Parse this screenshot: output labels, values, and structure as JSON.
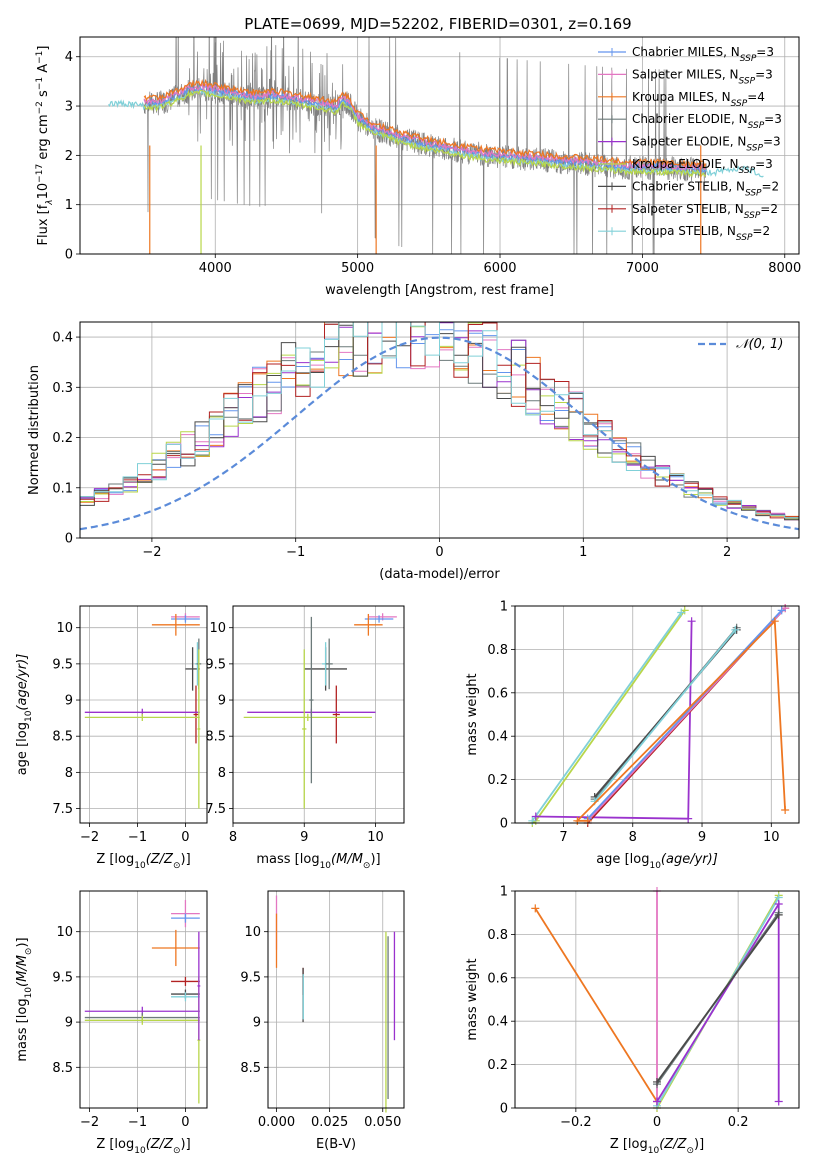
{
  "figure_title": "PLATE=0699, MJD=52202, FIBERID=0301, z=0.169",
  "colors": {
    "Chabrier MILES": "#6495ed",
    "Salpeter MILES": "#e377c2",
    "Kroupa MILES": "#ee7722",
    "Chabrier ELODIE": "#6c7a7a",
    "Salpeter ELODIE": "#9a32cd",
    "Kroupa ELODIE": "#b8d64a",
    "Chabrier STELIB": "#4a4a4a",
    "Salpeter STELIB": "#b22222",
    "Kroupa STELIB": "#80d0d8",
    "data": "#808080",
    "normal": "#5b8bd9"
  },
  "chart_data": [
    {
      "id": "spectrum",
      "type": "line",
      "xlabel": "wavelength [Angstrom, rest frame]",
      "ylabel_parts": [
        "Flux [f",
        "λ",
        "10",
        "−17",
        " erg cm",
        "−2",
        " s",
        "−1",
        " A",
        "−1",
        "]"
      ],
      "xlim": [
        3050,
        8100
      ],
      "ylim": [
        0,
        4.4
      ],
      "xticks": [
        4000,
        5000,
        6000,
        7000,
        8000
      ],
      "yticks": [
        0,
        1,
        2,
        3,
        4
      ],
      "legend": [
        {
          "name": "Chabrier MILES",
          "nssp": "3"
        },
        {
          "name": "Salpeter MILES",
          "nssp": "3"
        },
        {
          "name": "Kroupa MILES",
          "nssp": "4"
        },
        {
          "name": "Chabrier ELODIE",
          "nssp": "3"
        },
        {
          "name": "Salpeter ELODIE",
          "nssp": "3"
        },
        {
          "name": "Kroupa ELODIE",
          "nssp": "3"
        },
        {
          "name": "Chabrier STELIB",
          "nssp": "2"
        },
        {
          "name": "Salpeter STELIB",
          "nssp": "2"
        },
        {
          "name": "Kroupa STELIB",
          "nssp": "2"
        }
      ],
      "legend_position": "top-right",
      "continuum": {
        "x": [
          3250,
          3400,
          3500,
          3600,
          3700,
          3800,
          3900,
          4000,
          4100,
          4200,
          4300,
          4400,
          4500,
          4600,
          4700,
          4800,
          4850,
          4900,
          4950,
          5000,
          5100,
          5200,
          5300,
          5500,
          5700,
          5900,
          6100,
          6300,
          6500,
          6700,
          6900,
          7100,
          7300,
          7500,
          7700,
          7850
        ],
        "y": [
          3.1,
          3.1,
          3.05,
          3.05,
          3.15,
          3.3,
          3.35,
          3.3,
          3.25,
          3.2,
          3.15,
          3.2,
          3.15,
          3.1,
          3.05,
          3.0,
          2.95,
          3.15,
          3.0,
          2.75,
          2.55,
          2.45,
          2.35,
          2.2,
          2.1,
          2.0,
          1.95,
          1.9,
          1.85,
          1.8,
          1.75,
          1.75,
          1.72,
          1.7,
          1.8,
          1.65
        ]
      },
      "model_offsets": {
        "Kroupa MILES": 0.12,
        "Salpeter MILES": 0.05,
        "Chabrier MILES": 0.02,
        "Kroupa ELODIE": -0.08,
        "Kroupa STELIB": -0.05
      },
      "data_range": [
        3500,
        7450
      ]
    },
    {
      "id": "residuals",
      "type": "histogram",
      "xlabel": "(data-model)/error",
      "ylabel": "Normed distribution",
      "xlim": [
        -2.5,
        2.5
      ],
      "ylim": [
        0,
        0.43
      ],
      "xticks": [
        -2,
        -1,
        0,
        1,
        2
      ],
      "yticks": [
        0,
        0.1,
        0.2,
        0.3,
        0.4
      ],
      "legend": [
        "𝒩(0, 1)"
      ],
      "legend_position": "top-right",
      "normal_mean": 0,
      "normal_sigma": 1
    },
    {
      "id": "age-vs-Z",
      "type": "scatter",
      "xlabel_parts": [
        "Z [log",
        "10",
        "(Z/Z",
        "⊙",
        ")]"
      ],
      "ylabel_parts": [
        "age  [log",
        "10",
        "(age/yr)]"
      ],
      "xlim": [
        -2.2,
        0.45
      ],
      "ylim": [
        7.3,
        10.3
      ],
      "xticks": [
        -2,
        -1,
        0
      ],
      "yticks": [
        7.5,
        8.0,
        8.5,
        9.0,
        9.5,
        10.0
      ],
      "points": [
        {
          "model": "Salpeter MILES",
          "x": 0.0,
          "y": 10.15,
          "xerr": 0.3,
          "yerr": 0.05
        },
        {
          "model": "Chabrier MILES",
          "x": 0.0,
          "y": 10.12,
          "xerr": 0.3,
          "yerr": 0.05
        },
        {
          "model": "Kroupa MILES",
          "x": -0.2,
          "y": 10.04,
          "xerr": 0.5,
          "yerr": 0.15
        },
        {
          "model": "Chabrier STELIB",
          "x": 0.15,
          "y": 9.43,
          "xerr": 0.15,
          "yerr": 0.3
        },
        {
          "model": "Kroupa STELIB",
          "x": 0.25,
          "y": 9.5,
          "xerr": 0.05,
          "yerr": 0.3
        },
        {
          "model": "Chabrier ELODIE",
          "x": 0.28,
          "y": 9.5,
          "xerr": 0.05,
          "yerr": 0.35
        },
        {
          "model": "Salpeter STELIB",
          "x": 0.22,
          "y": 8.8,
          "xerr": 0.05,
          "yerr": 0.4
        },
        {
          "model": "Salpeter ELODIE",
          "x": -0.9,
          "y": 8.83,
          "xerr": 1.2,
          "yerr": 0.05
        },
        {
          "model": "Kroupa ELODIE",
          "x": -0.9,
          "y": 8.76,
          "xerr": 1.2,
          "yerr": 0.05
        },
        {
          "model": "Kroupa ELODIE",
          "x": 0.28,
          "y": 8.6,
          "xerr": 0.03,
          "yerr": 1.1
        }
      ]
    },
    {
      "id": "age-vs-mass",
      "type": "scatter",
      "xlabel_parts": [
        "mass [log",
        "10",
        "(M/M",
        "⊙",
        ")]"
      ],
      "ylabel_parts": [],
      "xlim": [
        8.0,
        10.4
      ],
      "ylim": [
        7.3,
        10.3
      ],
      "xticks": [
        8,
        9,
        10
      ],
      "yticks": [
        7.5,
        8.0,
        8.5,
        9.0,
        9.5,
        10.0
      ],
      "points": [
        {
          "model": "Salpeter MILES",
          "x": 10.1,
          "y": 10.15,
          "xerr": 0.2,
          "yerr": 0.05
        },
        {
          "model": "Chabrier MILES",
          "x": 10.05,
          "y": 10.12,
          "xerr": 0.2,
          "yerr": 0.05
        },
        {
          "model": "Kroupa MILES",
          "x": 9.9,
          "y": 10.04,
          "xerr": 0.2,
          "yerr": 0.15
        },
        {
          "model": "Chabrier STELIB",
          "x": 9.3,
          "y": 9.43,
          "xerr": 0.3,
          "yerr": 0.3
        },
        {
          "model": "Kroupa STELIB",
          "x": 9.3,
          "y": 9.5,
          "xerr": 0.05,
          "yerr": 0.3
        },
        {
          "model": "Chabrier ELODIE",
          "x": 9.35,
          "y": 9.5,
          "xerr": 0.05,
          "yerr": 0.35
        },
        {
          "model": "Salpeter STELIB",
          "x": 9.45,
          "y": 8.8,
          "xerr": 0.05,
          "yerr": 0.4
        },
        {
          "model": "Salpeter ELODIE",
          "x": 9.1,
          "y": 8.83,
          "xerr": 0.9,
          "yerr": 0.05
        },
        {
          "model": "Kroupa ELODIE",
          "x": 9.05,
          "y": 8.76,
          "xerr": 0.9,
          "yerr": 0.05
        },
        {
          "model": "Kroupa ELODIE",
          "x": 9.0,
          "y": 8.6,
          "xerr": 0.03,
          "yerr": 1.1
        },
        {
          "model": "Chabrier ELODIE",
          "x": 9.1,
          "y": 9.0,
          "xerr": 0.03,
          "yerr": 1.15
        }
      ]
    },
    {
      "id": "mass-weight-vs-age",
      "type": "line",
      "xlabel_parts": [
        "age  [log",
        "10",
        "(age/yr)]"
      ],
      "ylabel": "mass weight",
      "xlim": [
        6.3,
        10.4
      ],
      "ylim": [
        0,
        1.0
      ],
      "xticks": [
        7,
        8,
        9,
        10
      ],
      "yticks": [
        0.0,
        0.2,
        0.4,
        0.6,
        0.8,
        1.0
      ],
      "series": [
        {
          "name": "Kroupa ELODIE",
          "x": [
            6.55,
            6.6,
            8.75
          ],
          "y": [
            0.0,
            0.01,
            0.98
          ]
        },
        {
          "name": "Kroupa STELIB",
          "x": [
            6.55,
            8.7
          ],
          "y": [
            0.01,
            0.97
          ]
        },
        {
          "name": "Salpeter ELODIE",
          "x": [
            6.6,
            8.8,
            8.85
          ],
          "y": [
            0.03,
            0.02,
            0.93
          ]
        },
        {
          "name": "Chabrier ELODIE",
          "x": [
            7.45,
            9.5
          ],
          "y": [
            0.11,
            0.9
          ]
        },
        {
          "name": "Chabrier STELIB",
          "x": [
            7.45,
            9.5
          ],
          "y": [
            0.12,
            0.89
          ]
        },
        {
          "name": "Kroupa STELIB",
          "x": [
            7.45,
            9.48
          ],
          "y": [
            0.1,
            0.89
          ]
        },
        {
          "name": "Salpeter STELIB",
          "x": [
            7.35,
            10.2
          ],
          "y": [
            0.0,
            0.99
          ]
        },
        {
          "name": "Salpeter MILES",
          "x": [
            7.35,
            10.2
          ],
          "y": [
            0.01,
            0.99
          ]
        },
        {
          "name": "Chabrier MILES",
          "x": [
            7.35,
            10.15
          ],
          "y": [
            0.02,
            0.98
          ]
        },
        {
          "name": "Kroupa MILES",
          "x": [
            7.35,
            7.2,
            10.05,
            10.2
          ],
          "y": [
            0.01,
            0.01,
            0.93,
            0.06
          ]
        }
      ]
    },
    {
      "id": "mass-vs-Z",
      "type": "scatter",
      "xlabel_parts": [
        "Z [log",
        "10",
        "(Z/Z",
        "⊙",
        ")]"
      ],
      "ylabel_parts": [
        "mass [log",
        "10",
        "(M/M",
        "⊙",
        ")]"
      ],
      "xlim": [
        -2.2,
        0.45
      ],
      "ylim": [
        8.05,
        10.45
      ],
      "xticks": [
        -2,
        -1,
        0
      ],
      "yticks": [
        8.5,
        9.0,
        9.5,
        10.0
      ],
      "points": [
        {
          "model": "Salpeter MILES",
          "x": 0.0,
          "y": 10.2,
          "xerr": 0.3,
          "yerr": 0.15
        },
        {
          "model": "Chabrier MILES",
          "x": 0.0,
          "y": 10.15,
          "xerr": 0.3,
          "yerr": 0.05
        },
        {
          "model": "Kroupa MILES",
          "x": -0.2,
          "y": 9.82,
          "xerr": 0.5,
          "yerr": 0.2
        },
        {
          "model": "Salpeter STELIB",
          "x": 0.0,
          "y": 9.45,
          "xerr": 0.3,
          "yerr": 0.05
        },
        {
          "model": "Chabrier STELIB",
          "x": 0.0,
          "y": 9.31,
          "xerr": 0.3,
          "yerr": 0.05
        },
        {
          "model": "Kroupa STELIB",
          "x": 0.0,
          "y": 9.28,
          "xerr": 0.3,
          "yerr": 0.05
        },
        {
          "model": "Salpeter ELODIE",
          "x": -0.9,
          "y": 9.12,
          "xerr": 1.2,
          "yerr": 0.05
        },
        {
          "model": "Chabrier ELODIE",
          "x": -0.9,
          "y": 9.05,
          "xerr": 1.2,
          "yerr": 0.05
        },
        {
          "model": "Kroupa ELODIE",
          "x": -0.9,
          "y": 9.02,
          "xerr": 1.2,
          "yerr": 0.05
        },
        {
          "model": "Kroupa ELODIE",
          "x": 0.28,
          "y": 8.8,
          "xerr": 0.03,
          "yerr": 0.7
        },
        {
          "model": "Salpeter ELODIE",
          "x": 0.28,
          "y": 9.4,
          "xerr": 0.03,
          "yerr": 0.6
        }
      ]
    },
    {
      "id": "mass-vs-EBV",
      "type": "scatter",
      "xlabel": "E(B-V)",
      "ylabel_parts": [],
      "xlim": [
        -0.004,
        0.06
      ],
      "ylim": [
        8.05,
        10.45
      ],
      "xticks": [
        0.0,
        0.025,
        0.05
      ],
      "xticklabels": [
        "0.000",
        "0.025",
        "0.050"
      ],
      "yticks": [
        8.5,
        9.0,
        9.5,
        10.0
      ],
      "points": [
        {
          "model": "Salpeter MILES",
          "x": 0.0,
          "y": 10.1,
          "xerr": 0,
          "yerr": 0.3
        },
        {
          "model": "Kroupa MILES",
          "x": 0.0,
          "y": 9.9,
          "xerr": 0,
          "yerr": 0.3
        },
        {
          "model": "Salpeter STELIB",
          "x": 0.0125,
          "y": 9.45,
          "xerr": 0,
          "yerr": 0.15
        },
        {
          "model": "Chabrier STELIB",
          "x": 0.0125,
          "y": 9.3,
          "xerr": 0,
          "yerr": 0.3
        },
        {
          "model": "Kroupa STELIB",
          "x": 0.0126,
          "y": 9.28,
          "xerr": 0,
          "yerr": 0.25
        },
        {
          "model": "Kroupa ELODIE",
          "x": 0.0515,
          "y": 9.0,
          "xerr": 0,
          "yerr": 1.0
        },
        {
          "model": "Salpeter ELODIE",
          "x": 0.0555,
          "y": 9.4,
          "xerr": 0,
          "yerr": 0.6
        },
        {
          "model": "Chabrier ELODIE",
          "x": 0.0525,
          "y": 9.05,
          "xerr": 0,
          "yerr": 0.9
        }
      ]
    },
    {
      "id": "mass-weight-vs-Z",
      "type": "line",
      "xlabel_parts": [
        "Z [log",
        "10",
        "(Z/Z",
        "⊙",
        ")]"
      ],
      "ylabel": "mass weight",
      "xlim": [
        -0.35,
        0.35
      ],
      "ylim": [
        0,
        1.0
      ],
      "xticks": [
        -0.2,
        0.0,
        0.2
      ],
      "yticks": [
        0.0,
        0.2,
        0.4,
        0.6,
        0.8,
        1.0
      ],
      "series": [
        {
          "name": "Kroupa MILES",
          "x": [
            -0.3,
            0.0
          ],
          "y": [
            0.92,
            0.03
          ]
        },
        {
          "name": "Salpeter MILES",
          "x": [
            0.0,
            0.0
          ],
          "y": [
            1.0,
            0.0
          ]
        },
        {
          "name": "Kroupa ELODIE",
          "x": [
            0.0,
            0.3
          ],
          "y": [
            0.0,
            0.98
          ]
        },
        {
          "name": "Kroupa STELIB",
          "x": [
            0.0,
            0.3
          ],
          "y": [
            0.01,
            0.97
          ]
        },
        {
          "name": "Salpeter ELODIE",
          "x": [
            0.0,
            0.3,
            0.3
          ],
          "y": [
            0.03,
            0.94,
            0.03
          ]
        },
        {
          "name": "Chabrier ELODIE",
          "x": [
            0.0,
            0.3
          ],
          "y": [
            0.11,
            0.9
          ]
        },
        {
          "name": "Chabrier STELIB",
          "x": [
            0.0,
            0.3
          ],
          "y": [
            0.12,
            0.89
          ]
        }
      ]
    }
  ]
}
